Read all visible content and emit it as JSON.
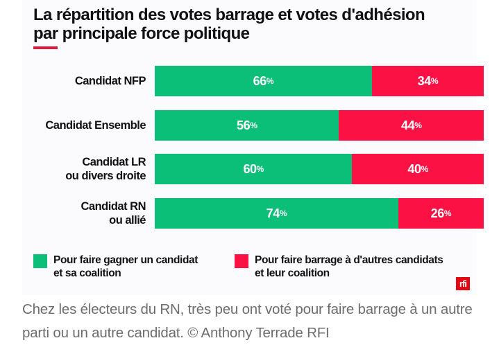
{
  "chart_data": {
    "type": "bar",
    "orientation": "horizontal",
    "stacked": true,
    "title": "La répartition des votes barrage et votes d'adhésion par principale force politique",
    "title_lines": [
      "La répartition des votes barrage et votes d'adhésion",
      "par principale force politique"
    ],
    "categories": [
      "Candidat NFP",
      "Candidat Ensemble",
      "Candidat LR ou divers droite",
      "Candidat RN ou allié"
    ],
    "category_lines": [
      [
        "Candidat NFP"
      ],
      [
        "Candidat Ensemble"
      ],
      [
        "Candidat LR",
        "ou divers droite"
      ],
      [
        "Candidat RN",
        "ou allié"
      ]
    ],
    "series": [
      {
        "name": "Pour faire gagner un candidat et sa coalition",
        "name_lines": [
          "Pour faire gagner un candidat",
          "et sa coalition"
        ],
        "color": "#0bbf78",
        "values": [
          66,
          56,
          60,
          74
        ]
      },
      {
        "name": "Pour faire barrage à d'autres candidats et leur coalition",
        "name_lines": [
          "Pour faire barrage à d'autres candidats",
          "et leur coalition"
        ],
        "color": "#fb1143",
        "values": [
          34,
          44,
          40,
          26
        ]
      }
    ],
    "value_suffix": "%",
    "xlim": [
      0,
      100
    ],
    "xlabel": "",
    "ylabel": "",
    "grid": false,
    "legend_position": "bottom"
  },
  "brand": {
    "logo_text": "rfi",
    "accent_color": "#d91a3a"
  },
  "caption": "Chez les électeurs du RN, très peu ont voté pour faire barrage à un autre parti ou un autre candidat. © Anthony Terrade RFI"
}
